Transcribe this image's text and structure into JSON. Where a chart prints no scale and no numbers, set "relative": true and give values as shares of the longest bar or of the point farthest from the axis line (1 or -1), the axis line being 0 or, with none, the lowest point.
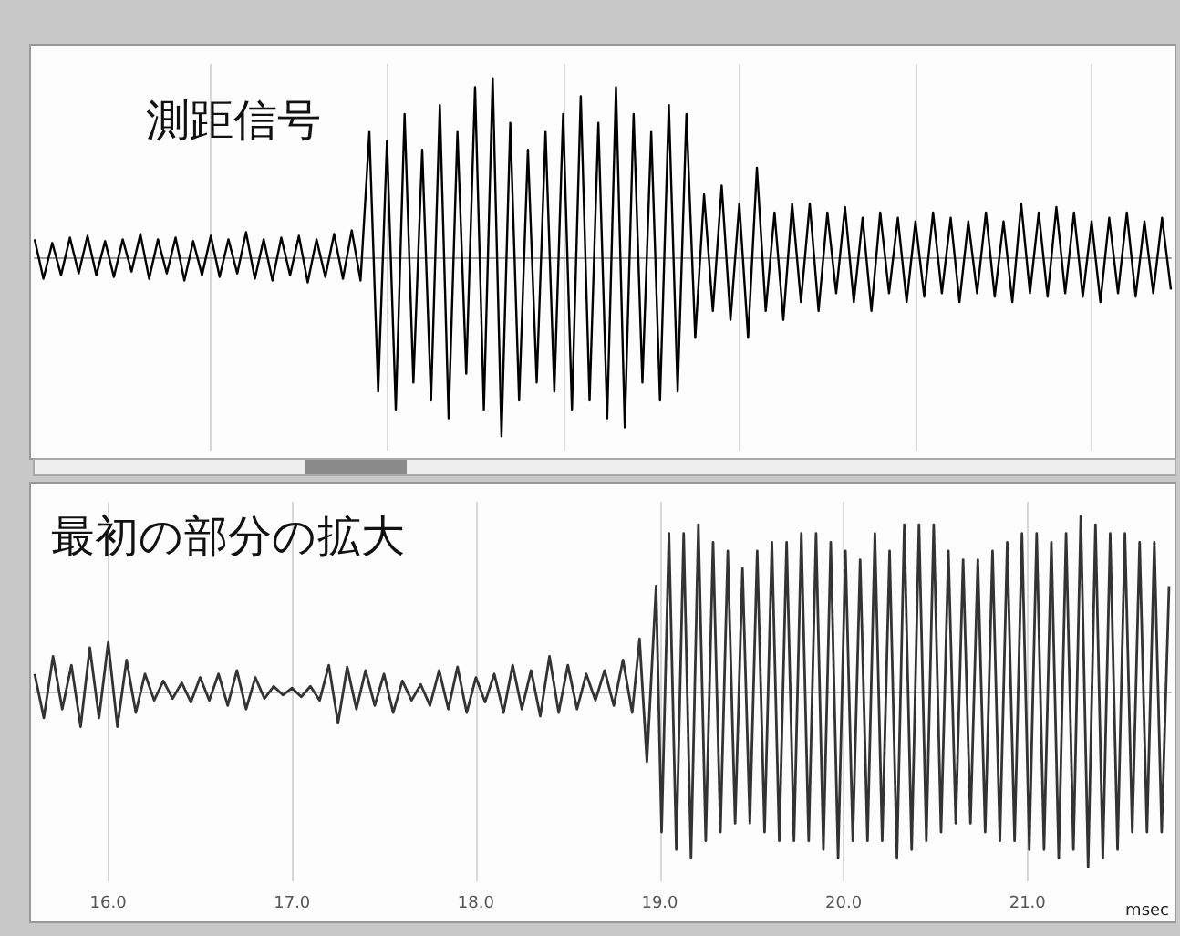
{
  "chart_data": [
    {
      "type": "line",
      "title": "測距信号",
      "relative": true,
      "grid": "x",
      "tick_labels": false,
      "color": "#000000",
      "categories": [
        null,
        null,
        null,
        null,
        null,
        null,
        null,
        null,
        null,
        null,
        null,
        null,
        null,
        null,
        null,
        null,
        null,
        null,
        null,
        null,
        null,
        null,
        null,
        null,
        null,
        null,
        null,
        null,
        null,
        null,
        null,
        null,
        null,
        null,
        null,
        null,
        null,
        null,
        null,
        null,
        null,
        null,
        null,
        null,
        null,
        null,
        null,
        null,
        null,
        null,
        null,
        null,
        null,
        null,
        null,
        null,
        null,
        null,
        null,
        null,
        null,
        null,
        null,
        null,
        null,
        null,
        null,
        null,
        null,
        null,
        null,
        null,
        null,
        null,
        null,
        null,
        null,
        null,
        null,
        null,
        null,
        null,
        null,
        null,
        null,
        null,
        null,
        null,
        null,
        null,
        null,
        null,
        null,
        null,
        null,
        null,
        null,
        null,
        null,
        null,
        null,
        null,
        null,
        null,
        null,
        null,
        null,
        null,
        null,
        null,
        null,
        null,
        null,
        null,
        null,
        null,
        null,
        null,
        null,
        null,
        null,
        null,
        null,
        null,
        null,
        null,
        null,
        null,
        null,
        null
      ],
      "values": [
        0.1,
        -0.12,
        0.08,
        -0.1,
        0.11,
        -0.09,
        0.12,
        -0.1,
        0.09,
        -0.11,
        0.1,
        -0.08,
        0.13,
        -0.12,
        0.1,
        -0.09,
        0.11,
        -0.13,
        0.09,
        -0.1,
        0.12,
        -0.11,
        0.1,
        -0.09,
        0.14,
        -0.12,
        0.1,
        -0.13,
        0.11,
        -0.1,
        0.12,
        -0.14,
        0.1,
        -0.11,
        0.13,
        -0.12,
        0.15,
        -0.13,
        0.7,
        -0.75,
        0.65,
        -0.85,
        0.8,
        -0.7,
        0.6,
        -0.8,
        0.85,
        -0.9,
        0.7,
        -0.65,
        0.95,
        -0.85,
        1.0,
        -1.0,
        0.75,
        -0.8,
        0.6,
        -0.7,
        0.7,
        -0.75,
        0.8,
        -0.85,
        0.9,
        -0.8,
        0.75,
        -0.9,
        0.95,
        -0.95,
        0.8,
        -0.7,
        0.7,
        -0.8,
        0.85,
        -0.75,
        0.8,
        -0.45,
        0.35,
        -0.3,
        0.4,
        -0.35,
        0.3,
        -0.45,
        0.5,
        -0.3,
        0.25,
        -0.35,
        0.3,
        -0.25,
        0.3,
        -0.3,
        0.25,
        -0.2,
        0.28,
        -0.25,
        0.22,
        -0.3,
        0.25,
        -0.2,
        0.22,
        -0.25,
        0.2,
        -0.22,
        0.25,
        -0.2,
        0.22,
        -0.25,
        0.2,
        -0.2,
        0.25,
        -0.22,
        0.2,
        -0.25,
        0.3,
        -0.2,
        0.25,
        -0.22,
        0.28,
        -0.2,
        0.25,
        -0.22,
        0.2,
        -0.25,
        0.22,
        -0.2,
        0.25,
        -0.22,
        0.2,
        -0.2,
        0.22,
        -0.18
      ]
    },
    {
      "type": "line",
      "title": "最初の部分の拡大",
      "relative": true,
      "grid": "x",
      "tick_labels": "x",
      "color": "#333333",
      "xlabel": "msec",
      "xlim": [
        15.6,
        21.78
      ],
      "xticks": [
        {
          "value": 16,
          "label": "16.0"
        },
        {
          "value": 17,
          "label": "17.0"
        },
        {
          "value": 18,
          "label": "18.0"
        },
        {
          "value": 19,
          "label": "19.0"
        },
        {
          "value": 20,
          "label": "20.0"
        },
        {
          "value": 21,
          "label": "21.0"
        }
      ],
      "x": [
        15.6,
        15.65,
        15.7,
        15.75,
        15.8,
        15.85,
        15.9,
        15.95,
        16.0,
        16.05,
        16.1,
        16.15,
        16.2,
        16.25,
        16.3,
        16.35,
        16.4,
        16.45,
        16.5,
        16.55,
        16.6,
        16.65,
        16.7,
        16.75,
        16.8,
        16.85,
        16.9,
        16.95,
        17.0,
        17.05,
        17.1,
        17.15,
        17.2,
        17.25,
        17.3,
        17.35,
        17.4,
        17.45,
        17.5,
        17.55,
        17.6,
        17.65,
        17.7,
        17.75,
        17.8,
        17.85,
        17.9,
        17.95,
        18.0,
        18.05,
        18.1,
        18.15,
        18.2,
        18.25,
        18.3,
        18.35,
        18.4,
        18.45,
        18.5,
        18.55,
        18.6,
        18.65,
        18.7,
        18.75,
        18.8,
        18.85,
        18.89,
        18.93,
        18.98,
        19.01,
        19.05,
        19.09,
        19.13,
        19.17,
        19.21,
        19.25,
        19.29,
        19.33,
        19.37,
        19.41,
        19.45,
        19.49,
        19.53,
        19.57,
        19.61,
        19.65,
        19.69,
        19.73,
        19.77,
        19.81,
        19.85,
        19.89,
        19.93,
        19.97,
        20.01,
        20.05,
        20.09,
        20.13,
        20.17,
        20.21,
        20.25,
        20.29,
        20.33,
        20.37,
        20.41,
        20.45,
        20.49,
        20.53,
        20.57,
        20.61,
        20.65,
        20.69,
        20.73,
        20.77,
        20.81,
        20.85,
        20.89,
        20.93,
        20.97,
        21.01,
        21.05,
        21.09,
        21.13,
        21.17,
        21.21,
        21.25,
        21.29,
        21.33,
        21.37,
        21.41,
        21.45,
        21.49,
        21.53,
        21.57,
        21.61,
        21.65,
        21.69,
        21.73,
        21.77
      ],
      "values": [
        0.1,
        -0.15,
        0.2,
        -0.1,
        0.15,
        -0.2,
        0.25,
        -0.15,
        0.28,
        -0.2,
        0.18,
        -0.12,
        0.1,
        -0.05,
        0.06,
        -0.04,
        0.05,
        -0.06,
        0.08,
        -0.05,
        0.1,
        -0.08,
        0.12,
        -0.1,
        0.08,
        -0.04,
        0.03,
        -0.02,
        0.02,
        -0.03,
        0.03,
        -0.05,
        0.15,
        -0.18,
        0.14,
        -0.1,
        0.12,
        -0.08,
        0.1,
        -0.12,
        0.06,
        -0.05,
        0.04,
        -0.08,
        0.12,
        -0.1,
        0.14,
        -0.12,
        0.08,
        -0.06,
        0.1,
        -0.12,
        0.15,
        -0.1,
        0.12,
        -0.14,
        0.2,
        -0.12,
        0.15,
        -0.1,
        0.1,
        -0.05,
        0.12,
        -0.08,
        0.18,
        -0.12,
        0.3,
        -0.4,
        0.6,
        -0.8,
        0.9,
        -0.9,
        0.9,
        -0.95,
        0.95,
        -0.85,
        0.85,
        -0.8,
        0.8,
        -0.75,
        0.7,
        -0.75,
        0.8,
        -0.8,
        0.85,
        -0.85,
        0.85,
        -0.85,
        0.9,
        -0.85,
        0.9,
        -0.9,
        0.85,
        -0.95,
        0.8,
        -0.85,
        0.75,
        -0.85,
        0.9,
        -0.85,
        0.8,
        -0.95,
        0.95,
        -0.9,
        0.95,
        -0.85,
        0.95,
        -0.8,
        0.8,
        -0.75,
        0.75,
        -0.75,
        0.75,
        -0.8,
        0.8,
        -0.85,
        0.85,
        -0.85,
        0.9,
        -0.9,
        0.9,
        -0.9,
        0.85,
        -0.95,
        0.9,
        -0.9,
        1.0,
        -1.0,
        0.95,
        -0.95,
        0.9,
        -0.9,
        0.9,
        -0.8,
        0.85,
        -0.8,
        0.85,
        -0.8,
        0.6
      ]
    }
  ]
}
